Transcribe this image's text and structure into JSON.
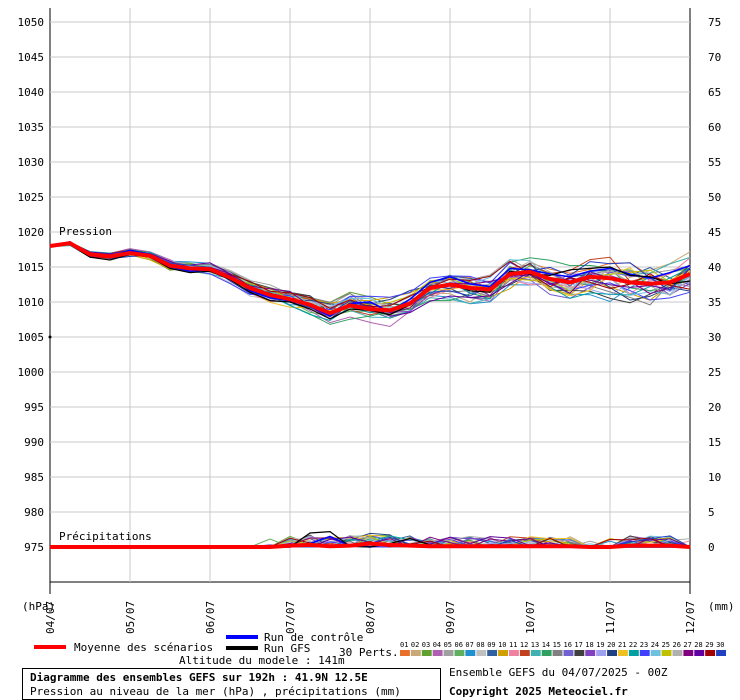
{
  "chart_data": {
    "type": "line",
    "title": "Diagramme des ensembles GEFS sur 192h : 41.9N 12.5E",
    "subtitle": "Pression au niveau de la mer (hPa) , précipitations (mm)",
    "left_axis": {
      "unit": "(hPa)",
      "ticks": [
        1050,
        1045,
        1040,
        1035,
        1030,
        1025,
        1020,
        1015,
        1010,
        1005,
        1000,
        995,
        990,
        985,
        980,
        975
      ],
      "ylim": [
        970,
        1050
      ]
    },
    "right_axis": {
      "unit": "(mm)",
      "ticks": [
        75,
        70,
        65,
        60,
        55,
        50,
        45,
        40,
        35,
        30,
        25,
        20,
        15,
        10,
        5,
        0
      ],
      "ylim": [
        -5,
        75
      ]
    },
    "x_ticks": [
      "04/07",
      "05/07",
      "06/07",
      "07/07",
      "08/07",
      "09/07",
      "10/07",
      "11/07",
      "12/07"
    ],
    "xlim_hours": [
      0,
      192
    ],
    "annotations": {
      "pression": "Pression",
      "precip": "Précipitations"
    },
    "x_hours": [
      0,
      6,
      12,
      18,
      24,
      30,
      36,
      42,
      48,
      54,
      60,
      66,
      72,
      78,
      84,
      90,
      96,
      102,
      108,
      114,
      120,
      126,
      132,
      138,
      144,
      150,
      156,
      162,
      168,
      174,
      180,
      186,
      192
    ],
    "series": [
      {
        "name": "Moyenne des scénarios",
        "axis": "pressure",
        "color": "#ff0000",
        "values": [
          1018.0,
          1018.4,
          1016.8,
          1016.5,
          1017.0,
          1016.6,
          1015.2,
          1014.8,
          1014.7,
          1013.5,
          1012.0,
          1011.0,
          1010.4,
          1009.6,
          1008.4,
          1009.5,
          1009.0,
          1008.8,
          1009.8,
          1012.0,
          1012.5,
          1012.0,
          1011.8,
          1014.0,
          1014.3,
          1013.3,
          1012.8,
          1013.6,
          1013.4,
          1012.8,
          1012.6,
          1012.8,
          1014.0
        ]
      },
      {
        "name": "Run de contrôle",
        "axis": "pressure",
        "color": "#0000ff",
        "values": [
          1018.0,
          1018.6,
          1016.6,
          1016.4,
          1017.4,
          1016.8,
          1015.0,
          1014.4,
          1014.6,
          1013.8,
          1011.6,
          1010.6,
          1010.2,
          1009.4,
          1008.0,
          1009.8,
          1010.0,
          1008.6,
          1010.4,
          1012.8,
          1013.6,
          1012.6,
          1012.2,
          1014.8,
          1014.6,
          1014.0,
          1013.6,
          1014.4,
          1014.8,
          1014.0,
          1013.4,
          1014.2,
          1015.2
        ]
      },
      {
        "name": "Run GFS",
        "axis": "pressure",
        "color": "#000000",
        "values": [
          1018.0,
          1018.2,
          1016.4,
          1016.0,
          1016.8,
          1016.4,
          1014.8,
          1014.2,
          1014.4,
          1013.2,
          1011.4,
          1010.2,
          1010.0,
          1009.0,
          1007.6,
          1009.0,
          1008.8,
          1008.2,
          1009.6,
          1011.8,
          1012.6,
          1011.6,
          1011.4,
          1014.4,
          1014.0,
          1013.8,
          1014.6,
          1014.8,
          1015.0,
          1013.8,
          1013.6,
          1012.6,
          1013.0
        ]
      },
      {
        "name": "Moyenne des scénarios",
        "axis": "precip",
        "color": "#ff0000",
        "values": [
          0,
          0,
          0,
          0,
          0,
          0,
          0,
          0,
          0,
          0,
          0,
          0,
          0.2,
          0.3,
          0.1,
          0.2,
          0.5,
          0.3,
          0.2,
          0.1,
          0.1,
          0.1,
          0.1,
          0.1,
          0.1,
          0.1,
          0.1,
          0,
          0,
          0.2,
          0.2,
          0.2,
          0
        ]
      },
      {
        "name": "Run de contrôle",
        "axis": "precip",
        "color": "#0000ff",
        "values": [
          0,
          0,
          0,
          0,
          0,
          0,
          0,
          0,
          0,
          0,
          0,
          0,
          0,
          0.5,
          1.5,
          0.2,
          0,
          0.5,
          0.3,
          0,
          0,
          0,
          0,
          0,
          0,
          0,
          0,
          0,
          0,
          0,
          0,
          0,
          0
        ]
      },
      {
        "name": "Run GFS",
        "axis": "precip",
        "color": "#000000",
        "values": [
          0,
          0,
          0,
          0,
          0,
          0,
          0,
          0,
          0,
          0,
          0,
          0,
          0,
          2.0,
          2.2,
          0.1,
          0,
          0.5,
          1.2,
          0.3,
          0,
          0,
          0,
          0,
          0,
          0,
          0,
          0,
          0,
          0,
          0,
          0,
          0
        ]
      }
    ],
    "perturbations": {
      "label": "30 Perts.",
      "numbers": [
        "01",
        "02",
        "03",
        "04",
        "05",
        "06",
        "07",
        "08",
        "09",
        "10",
        "11",
        "12",
        "13",
        "14",
        "15",
        "16",
        "17",
        "18",
        "19",
        "20",
        "21",
        "22",
        "23",
        "24",
        "25",
        "26",
        "27",
        "28",
        "29",
        "30"
      ],
      "colors": [
        "#e8702a",
        "#c8a878",
        "#60a030",
        "#b060b0",
        "#a0a0a0",
        "#60b060",
        "#2090d0",
        "#c0c0c0",
        "#3060a0",
        "#d0a000",
        "#f080a0",
        "#c04020",
        "#40b0b0",
        "#30a060",
        "#808080",
        "#7060d0",
        "#404040",
        "#8040c0",
        "#a0a0f0",
        "#204080",
        "#f0c020",
        "#00a0a0",
        "#4040ff",
        "#70c0e0",
        "#c0c000",
        "#b0b0b0",
        "#800080",
        "#6000a0",
        "#a00000",
        "#2040c0"
      ]
    },
    "legend": {
      "mean": "Moyenne des scénarios",
      "control": "Run de contrôle",
      "gfs": "Run GFS",
      "altitude": "Altitude du modele : 141m",
      "colors": {
        "mean": "#ff0000",
        "control": "#0000ff",
        "gfs": "#000000"
      }
    }
  },
  "footer": {
    "title": "Diagramme des ensembles GEFS sur 192h : 41.9N 12.5E",
    "subtitle": "Pression au niveau de la mer (hPa) , précipitations (mm)",
    "run": "Ensemble GEFS du 04/07/2025 - 00Z",
    "copyright": "Copyright 2025 Meteociel.fr"
  }
}
